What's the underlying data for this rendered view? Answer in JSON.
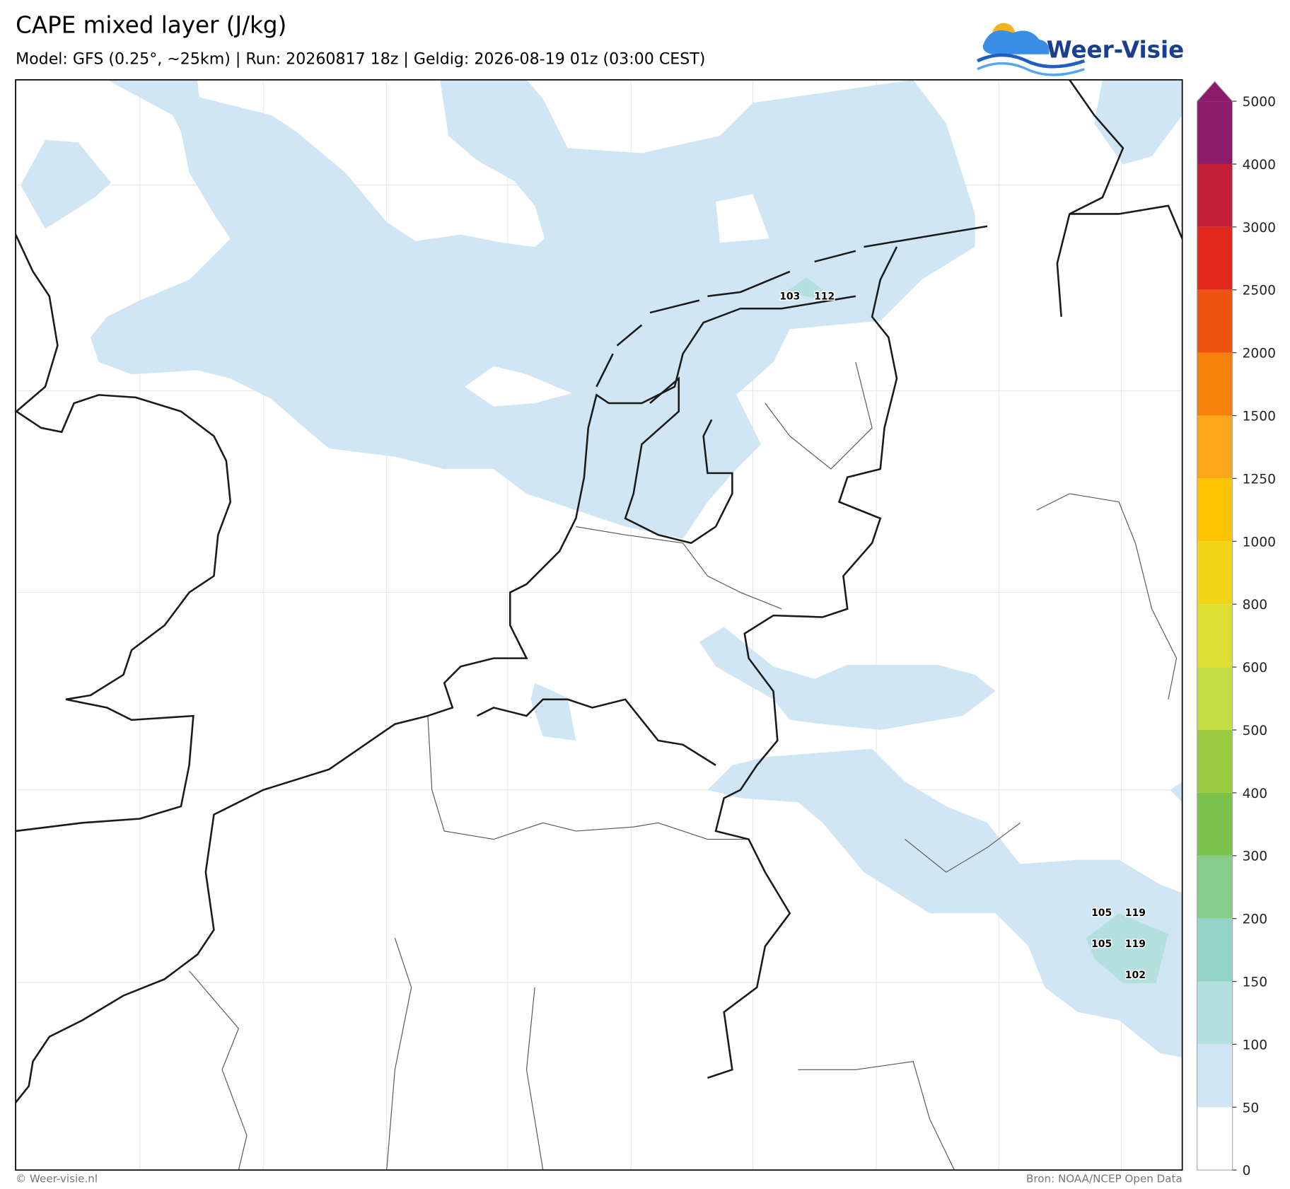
{
  "header": {
    "title": "CAPE mixed layer (J/kg)",
    "subtitle": "Model: GFS (0.25°, ~25km)  |  Run: 20260817 18z  |  Geldig: 2026-08-19 01z (03:00 CEST)"
  },
  "logo": {
    "text": "Weer-Visie"
  },
  "map": {
    "labels": [
      103,
      112,
      105,
      119,
      105,
      119,
      102
    ]
  },
  "colorbar": {
    "ticks": [
      0,
      50,
      100,
      150,
      200,
      300,
      400,
      500,
      600,
      800,
      1000,
      1250,
      1500,
      2000,
      2500,
      3000,
      4000,
      5000
    ],
    "colors": [
      "#ffffff",
      "#d0e6f5",
      "#b3e0df",
      "#94d3c8",
      "#86cc8a",
      "#7ac24a",
      "#9bcb3e",
      "#c4dd46",
      "#dde033",
      "#f3d517",
      "#fbc500",
      "#fca61b",
      "#f7800a",
      "#ee5311",
      "#e1281a",
      "#c11f3a",
      "#8c1b6b"
    ],
    "extend_color": "#8c1b6b"
  },
  "footer": {
    "left": "© Weer-visie.nl",
    "right": "Bron: NOAA/NCEP Open Data"
  }
}
